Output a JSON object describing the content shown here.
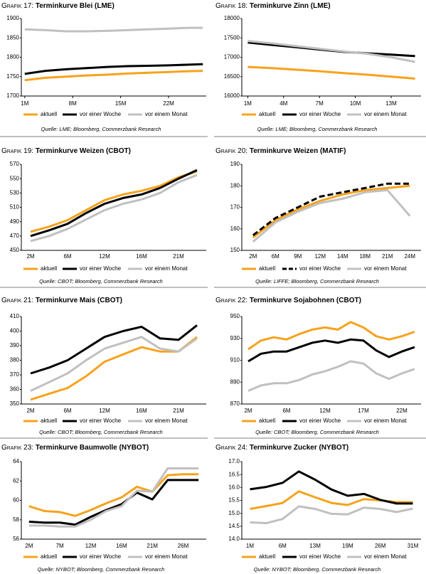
{
  "chart_data": [
    {
      "type": "line",
      "label": "Grafik 17:",
      "title": "Terminkurve Blei (LME)",
      "source": "Quelle: LME; Bloomberg, Commerzbank Research",
      "x": [
        1,
        4,
        7,
        10,
        13,
        16,
        19,
        22,
        25,
        27
      ],
      "xlim": [
        0.5,
        27.5
      ],
      "xticks": [
        {
          "value": 1,
          "label": "1M"
        },
        {
          "value": 8,
          "label": "8M"
        },
        {
          "value": 15,
          "label": "15M"
        },
        {
          "value": 22,
          "label": "22M"
        }
      ],
      "ylim": [
        1700,
        1900
      ],
      "yticks": [
        1700,
        1750,
        1800,
        1850,
        1900
      ],
      "series": [
        {
          "name": "aktuell",
          "color": "#f7a21b",
          "values": [
            1741,
            1747,
            1750,
            1753,
            1755,
            1758,
            1760,
            1762,
            1764,
            1765
          ]
        },
        {
          "name": "vor einer Woche",
          "color": "#000000",
          "values": [
            1757,
            1765,
            1769,
            1772,
            1775,
            1777,
            1778,
            1779,
            1781,
            1782
          ]
        },
        {
          "name": "vor einem Monat",
          "color": "#c0c0c0",
          "values": [
            1872,
            1870,
            1867,
            1867,
            1868,
            1870,
            1872,
            1874,
            1876,
            1876
          ]
        }
      ]
    },
    {
      "type": "line",
      "label": "Grafik 18:",
      "title": "Terminkurve Zinn (LME)",
      "source": "Quelle: LME; Bloomberg, Commerzbank Research",
      "x": [
        1,
        3,
        5,
        7,
        9,
        11,
        13,
        15
      ],
      "xlim": [
        0.5,
        15.5
      ],
      "xticks": [
        {
          "value": 1,
          "label": "1M"
        },
        {
          "value": 4,
          "label": "4M"
        },
        {
          "value": 7,
          "label": "7M"
        },
        {
          "value": 10,
          "label": "10M"
        },
        {
          "value": 13,
          "label": "13M"
        }
      ],
      "ylim": [
        16000,
        18000
      ],
      "yticks": [
        16000,
        16500,
        17000,
        17500,
        18000
      ],
      "series": [
        {
          "name": "aktuell",
          "color": "#f7a21b",
          "values": [
            16750,
            16720,
            16680,
            16640,
            16590,
            16550,
            16500,
            16450
          ]
        },
        {
          "name": "vor einer Woche",
          "color": "#000000",
          "values": [
            17380,
            17320,
            17260,
            17200,
            17140,
            17100,
            17070,
            17030
          ]
        },
        {
          "name": "vor einem Monat",
          "color": "#c0c0c0",
          "values": [
            17420,
            17360,
            17290,
            17220,
            17150,
            17090,
            17000,
            16880
          ]
        }
      ]
    },
    {
      "type": "line",
      "label": "Grafik 19:",
      "title": "Terminkurve Weizen (CBOT)",
      "source": "Quelle: CBOT; Bloomberg, Commerzbank Research",
      "categories": [
        "2M",
        null,
        "6M",
        null,
        "12M",
        null,
        "16M",
        null,
        "21M",
        null
      ],
      "ylim": [
        450,
        570
      ],
      "yticks": [
        450,
        470,
        490,
        510,
        530,
        550,
        570
      ],
      "series": [
        {
          "name": "aktuell",
          "color": "#f7a21b",
          "values": [
            476,
            483,
            492,
            506,
            520,
            528,
            533,
            540,
            552,
            560
          ]
        },
        {
          "name": "vor einer Woche",
          "color": "#000000",
          "values": [
            470,
            478,
            487,
            502,
            515,
            523,
            528,
            537,
            550,
            562
          ]
        },
        {
          "name": "vor einem Monat",
          "color": "#c0c0c0",
          "values": [
            463,
            470,
            480,
            493,
            506,
            515,
            521,
            530,
            545,
            555
          ]
        }
      ]
    },
    {
      "type": "line",
      "label": "Grafik 20:",
      "title": "Terminkurve Weizen (MATIF)",
      "source": "Quelle: LIFFE; Bloomberg, Commerzbank Research",
      "categories": [
        "2M",
        "6M",
        "9M",
        "12M",
        "14M",
        "18M",
        "21M",
        "24M"
      ],
      "ylim": [
        150,
        190
      ],
      "yticks": [
        150,
        160,
        170,
        180,
        190
      ],
      "series": [
        {
          "name": "aktuell",
          "color": "#f7a21b",
          "values": [
            156,
            164,
            169,
            173,
            176,
            178,
            179,
            180
          ]
        },
        {
          "name": "vor einer Woche",
          "color": "#000000",
          "dashed": true,
          "values": [
            157,
            165,
            170,
            175,
            177,
            179,
            181,
            181
          ]
        },
        {
          "name": "vor einem Monat",
          "color": "#c0c0c0",
          "values": [
            154,
            163,
            168,
            172,
            174,
            177,
            178,
            166
          ]
        }
      ]
    },
    {
      "type": "line",
      "label": "Grafik 21:",
      "title": "Terminkurve Mais (CBOT)",
      "source": "Quelle: CBOT; Bloomberg, Commerzbank Research",
      "categories": [
        "2M",
        null,
        "6M",
        null,
        "12M",
        null,
        "16M",
        null,
        "21M",
        null
      ],
      "ylim": [
        350,
        410
      ],
      "yticks": [
        350,
        360,
        370,
        380,
        390,
        400,
        410
      ],
      "series": [
        {
          "name": "aktuell",
          "color": "#f7a21b",
          "values": [
            353,
            357,
            361,
            369,
            379,
            384,
            389,
            386,
            386,
            396
          ]
        },
        {
          "name": "vor einer Woche",
          "color": "#000000",
          "values": [
            371,
            375,
            380,
            388,
            396,
            400,
            403,
            395,
            394,
            404
          ]
        },
        {
          "name": "vor einem Monat",
          "color": "#c0c0c0",
          "values": [
            359,
            365,
            371,
            380,
            388,
            392,
            396,
            388,
            386,
            395
          ]
        }
      ]
    },
    {
      "type": "line",
      "label": "Grafik 22:",
      "title": "Terminkurve Sojabohnen (CBOT)",
      "source": "Quelle: CBOT; Bloomberg, Commerzbank Research",
      "categories": [
        "2M",
        null,
        null,
        "6M",
        null,
        null,
        "12M",
        null,
        null,
        "17M",
        null,
        null,
        "22M",
        null
      ],
      "ylim": [
        870,
        950
      ],
      "yticks": [
        870,
        890,
        910,
        930,
        950
      ],
      "series": [
        {
          "name": "aktuell",
          "color": "#f7a21b",
          "values": [
            920,
            928,
            931,
            929,
            934,
            938,
            940,
            938,
            945,
            940,
            932,
            929,
            932,
            936
          ]
        },
        {
          "name": "vor einer Woche",
          "color": "#000000",
          "values": [
            909,
            916,
            918,
            918,
            922,
            926,
            928,
            926,
            929,
            928,
            919,
            913,
            918,
            922
          ]
        },
        {
          "name": "vor einem Monat",
          "color": "#c0c0c0",
          "values": [
            882,
            887,
            889,
            889,
            892,
            897,
            900,
            904,
            909,
            907,
            898,
            893,
            898,
            902
          ]
        }
      ]
    },
    {
      "type": "line",
      "label": "Grafik 23:",
      "title": "Terminkurve Baumwolle (NYBOT)",
      "source": "Quelle: NYBOT; Bloomberg, Commerzbank Research",
      "categories": [
        "2M",
        null,
        "7M",
        null,
        "12M",
        null,
        "16M",
        null,
        "21M",
        null,
        "26M",
        null
      ],
      "ylim": [
        56,
        64
      ],
      "yticks": [
        56,
        58,
        60,
        62,
        64
      ],
      "series": [
        {
          "name": "aktuell",
          "color": "#f7a21b",
          "values": [
            59.4,
            58.9,
            58.8,
            58.4,
            59.0,
            59.7,
            60.3,
            61.4,
            60.9,
            62.6,
            62.7,
            62.7
          ]
        },
        {
          "name": "vor einer Woche",
          "color": "#000000",
          "values": [
            57.8,
            57.7,
            57.7,
            57.5,
            58.3,
            59.0,
            59.6,
            60.8,
            60.1,
            62.1,
            62.1,
            62.1
          ]
        },
        {
          "name": "vor einem Monat",
          "color": "#c0c0c0",
          "values": [
            57.4,
            57.4,
            57.3,
            57.3,
            58.0,
            58.9,
            59.4,
            61.0,
            60.9,
            63.3,
            63.3,
            63.3
          ]
        }
      ]
    },
    {
      "type": "line",
      "label": "Grafik 24:",
      "title": "Terminkurve Zucker (NYBOT)",
      "source": "Quelle: NYBOT; Bloomberg, Commerzbank Research",
      "categories": [
        "1M",
        null,
        "6M",
        null,
        "13M",
        null,
        "19M",
        null,
        "26M",
        null,
        "31M"
      ],
      "ylim": [
        14,
        17
      ],
      "yticks": [
        {
          "value": 14,
          "label": "14.0"
        },
        {
          "value": 14.5,
          "label": "14.5"
        },
        {
          "value": 15,
          "label": "15.0"
        },
        {
          "value": 15.5,
          "label": "15.5"
        },
        {
          "value": 16,
          "label": "16.0"
        },
        {
          "value": 16.5,
          "label": "16.5"
        },
        {
          "value": 17,
          "label": "17.0"
        }
      ],
      "series": [
        {
          "name": "aktuell",
          "color": "#f7a21b",
          "values": [
            15.17,
            15.28,
            15.4,
            15.85,
            15.62,
            15.4,
            15.32,
            15.55,
            15.5,
            15.43,
            15.43
          ]
        },
        {
          "name": "vor einer Woche",
          "color": "#000000",
          "values": [
            15.93,
            16.02,
            16.18,
            16.62,
            16.3,
            15.92,
            15.68,
            15.75,
            15.52,
            15.38,
            15.38
          ]
        },
        {
          "name": "vor einem Monat",
          "color": "#c0c0c0",
          "values": [
            14.65,
            14.62,
            14.78,
            15.27,
            15.17,
            14.98,
            14.96,
            15.22,
            15.17,
            15.05,
            15.18
          ]
        }
      ]
    }
  ]
}
